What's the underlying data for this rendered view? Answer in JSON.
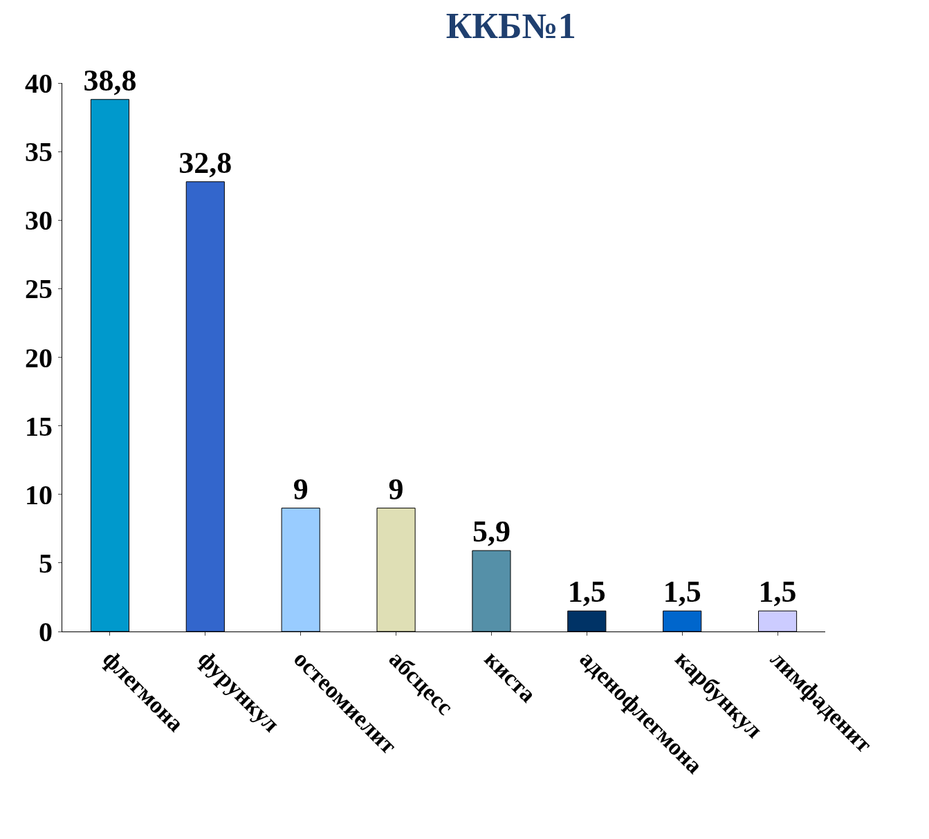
{
  "chart_data": {
    "type": "bar",
    "title": "ККБ№1",
    "categories": [
      "флегмона",
      "фурункул",
      "остеомиелит",
      "абсцесс",
      "киста",
      "аденофлегмона",
      "карбункул",
      "лимфаденит"
    ],
    "values": [
      38.8,
      32.8,
      9,
      9,
      5.9,
      1.5,
      1.5,
      1.5
    ],
    "value_labels": [
      "38,8",
      "32,8",
      "9",
      "9",
      "5,9",
      "1,5",
      "1,5",
      "1,5"
    ],
    "colors": [
      "#0099cc",
      "#3366cc",
      "#99ccff",
      "#dfdfb5",
      "#5590a8",
      "#003366",
      "#0066cc",
      "#ccccff"
    ],
    "ylim": [
      0,
      40
    ],
    "yticks": [
      0,
      5,
      10,
      15,
      20,
      25,
      30,
      35,
      40
    ]
  }
}
